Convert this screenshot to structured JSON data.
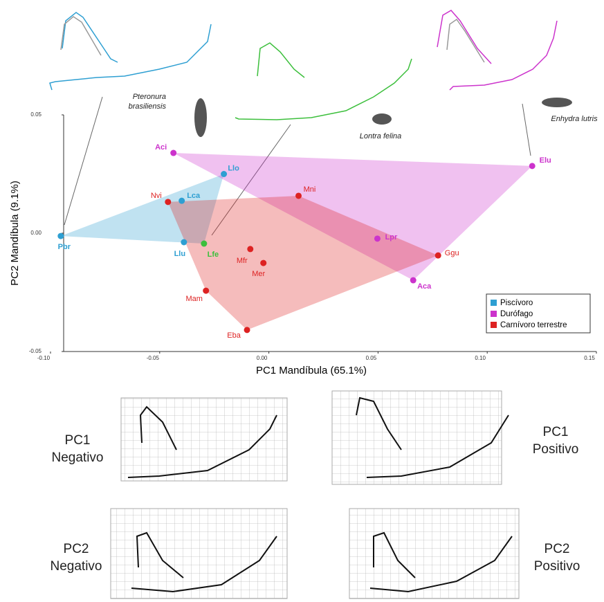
{
  "chart_data": {
    "type": "scatter",
    "xlabel": "PC1 Mandíbula (65.1%)",
    "ylabel": "PC2 Mandíbula (9.1%)",
    "xlim": [
      -0.1,
      0.15
    ],
    "xticks": [
      {
        "value": -0.1,
        "label": "-0.10"
      },
      {
        "value": -0.05,
        "label": "-0.05"
      },
      {
        "value": 0,
        "label": "0.00"
      },
      {
        "value": 0.05,
        "label": "0.05"
      },
      {
        "value": 0.1,
        "label": "0.10"
      },
      {
        "value": 0.15,
        "label": "0.15"
      }
    ],
    "ylim": [
      -0.05,
      0.05
    ],
    "yticks": [
      {
        "value": -0.05,
        "label": "-0.05"
      },
      {
        "value": 0,
        "label": "0.00"
      },
      {
        "value": 0.05,
        "label": "0.05"
      }
    ],
    "hulls": true,
    "series": [
      {
        "name": "Piscívoro",
        "color": "#2e9fd2",
        "labels": [
          "Pbr",
          "Llo",
          "Lca",
          "Llu",
          "Lfe"
        ],
        "x": [
          -0.0953,
          -0.0206,
          -0.0399,
          -0.0389,
          -0.0297
        ],
        "values": [
          -0.0012,
          0.025,
          0.0137,
          -0.0038,
          -0.0044
        ],
        "point_colors": [
          null,
          null,
          null,
          null,
          "#3cbf3c"
        ]
      },
      {
        "name": "Durófago",
        "color": "#cc33cc",
        "labels": [
          "Aci",
          "Elu",
          "Lpr",
          "Aca"
        ],
        "x": [
          -0.0437,
          0.1206,
          0.0497,
          0.0661
        ],
        "values": [
          0.0339,
          0.0284,
          -0.0023,
          -0.0199
        ],
        "point_colors": [
          null,
          null,
          null,
          null
        ]
      },
      {
        "name": "Carnívoro terrestre",
        "color": "#dd2222",
        "labels": [
          "Nvi",
          "Mni",
          "Mfr",
          "Mer",
          "Ggu",
          "Mam",
          "Eba"
        ],
        "x": [
          -0.0462,
          0.0136,
          -0.0085,
          -0.0025,
          0.0775,
          -0.0288,
          -0.01
        ],
        "values": [
          0.0132,
          0.0158,
          -0.0067,
          -0.0126,
          -0.0094,
          -0.0243,
          -0.0409
        ],
        "point_colors": [
          null,
          null,
          null,
          null,
          null,
          null,
          null
        ]
      }
    ]
  },
  "annotations": {
    "pteronura": [
      "Pteronura",
      "brasiliensis"
    ],
    "lontra": "Lontra felina",
    "enhydra": "Enhydra lutris"
  },
  "panels": [
    [
      "PC1",
      "Negativo"
    ],
    [
      "PC1",
      "Positivo"
    ],
    [
      "PC2",
      "Negativo"
    ],
    [
      "PC2",
      "Positivo"
    ]
  ]
}
